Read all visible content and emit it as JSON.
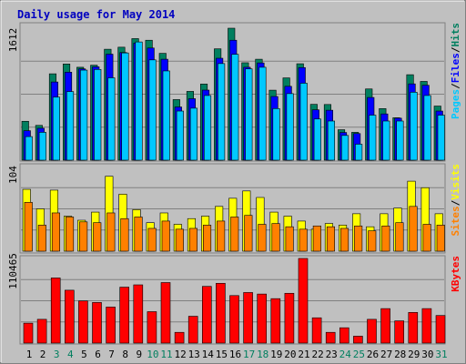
{
  "title": "Daily usage for May 2014",
  "colors": {
    "background": "#c0c0c0",
    "hits": "#007f5f",
    "files": "#0000ff",
    "pages": "#00c8ff",
    "visits": "#ffff00",
    "sites": "#ff8000",
    "kbytes": "#ff0000",
    "title": "#0000c0",
    "weekend_label": "#007f5f",
    "weekday_label": "#000000"
  },
  "chart_data": [
    {
      "type": "bar",
      "name": "hits-files-pages",
      "ymax_label": "1612",
      "ylim": [
        0,
        1612
      ],
      "labels": {
        "pages": "Pages",
        "files": "Files",
        "hits": "Hits",
        "sep1": "/",
        "sep2": "/"
      },
      "series": [
        {
          "name": "Hits",
          "values": [
            475,
            425,
            1055,
            1175,
            1135,
            1160,
            1355,
            1380,
            1485,
            1465,
            1305,
            740,
            840,
            930,
            1360,
            1612,
            1190,
            1233,
            855,
            1005,
            1178,
            682,
            680,
            372,
            340,
            870,
            630,
            518,
            1044,
            962,
            661
          ]
        },
        {
          "name": "Files",
          "values": [
            360,
            390,
            955,
            1075,
            1115,
            1140,
            1295,
            1315,
            1430,
            1370,
            1233,
            650,
            751,
            856,
            1245,
            1465,
            1135,
            1188,
            778,
            902,
            1131,
            615,
            610,
            338,
            325,
            766,
            565,
            513,
            932,
            915,
            600
          ]
        },
        {
          "name": "Pages",
          "values": [
            288,
            340,
            770,
            838,
            1100,
            1108,
            1006,
            1310,
            1444,
            1225,
            1090,
            600,
            635,
            790,
            1180,
            1293,
            1115,
            1135,
            630,
            813,
            940,
            503,
            478,
            302,
            195,
            550,
            478,
            478,
            830,
            790,
            550
          ]
        }
      ]
    },
    {
      "type": "bar",
      "name": "visits-sites",
      "ymax_label": "104",
      "ylim": [
        0,
        104
      ],
      "labels": {
        "sites": "Sites",
        "visits": "Visits",
        "sep": "/"
      },
      "series": [
        {
          "name": "Visits",
          "values": [
            76,
            52,
            75,
            43,
            38,
            48,
            92,
            70,
            51,
            35,
            47,
            33,
            40,
            43,
            55,
            65,
            74,
            66,
            48,
            43,
            37,
            27,
            34,
            32,
            46,
            30,
            46,
            53,
            86,
            78,
            46
          ]
        },
        {
          "name": "Sites",
          "values": [
            60,
            32,
            47,
            42,
            36,
            35,
            47,
            40,
            42,
            28,
            37,
            27,
            28,
            32,
            37,
            42,
            44,
            33,
            34,
            30,
            27,
            31,
            30,
            28,
            31,
            25,
            31,
            35,
            55,
            33,
            32
          ]
        }
      ]
    },
    {
      "type": "bar",
      "name": "kbytes",
      "ymax_label": "110465",
      "ylim": [
        0,
        110465
      ],
      "labels": {
        "kbytes": "KBytes"
      },
      "series": [
        {
          "name": "KBytes",
          "values": [
            26000,
            31000,
            85000,
            69000,
            55000,
            53000,
            47000,
            73000,
            76000,
            41000,
            79000,
            14000,
            35000,
            74000,
            78000,
            62000,
            66000,
            64000,
            58000,
            65000,
            110465,
            33000,
            14000,
            20000,
            9000,
            31000,
            45000,
            29000,
            40000,
            45000,
            36000
          ]
        }
      ]
    }
  ],
  "x_axis": {
    "days": [
      "1",
      "2",
      "3",
      "4",
      "5",
      "6",
      "7",
      "8",
      "9",
      "10",
      "11",
      "12",
      "13",
      "14",
      "15",
      "16",
      "17",
      "18",
      "19",
      "20",
      "21",
      "22",
      "23",
      "24",
      "25",
      "26",
      "27",
      "28",
      "29",
      "30",
      "31"
    ],
    "weekend_days": [
      "3",
      "4",
      "10",
      "11",
      "17",
      "18",
      "24",
      "25",
      "31"
    ]
  }
}
